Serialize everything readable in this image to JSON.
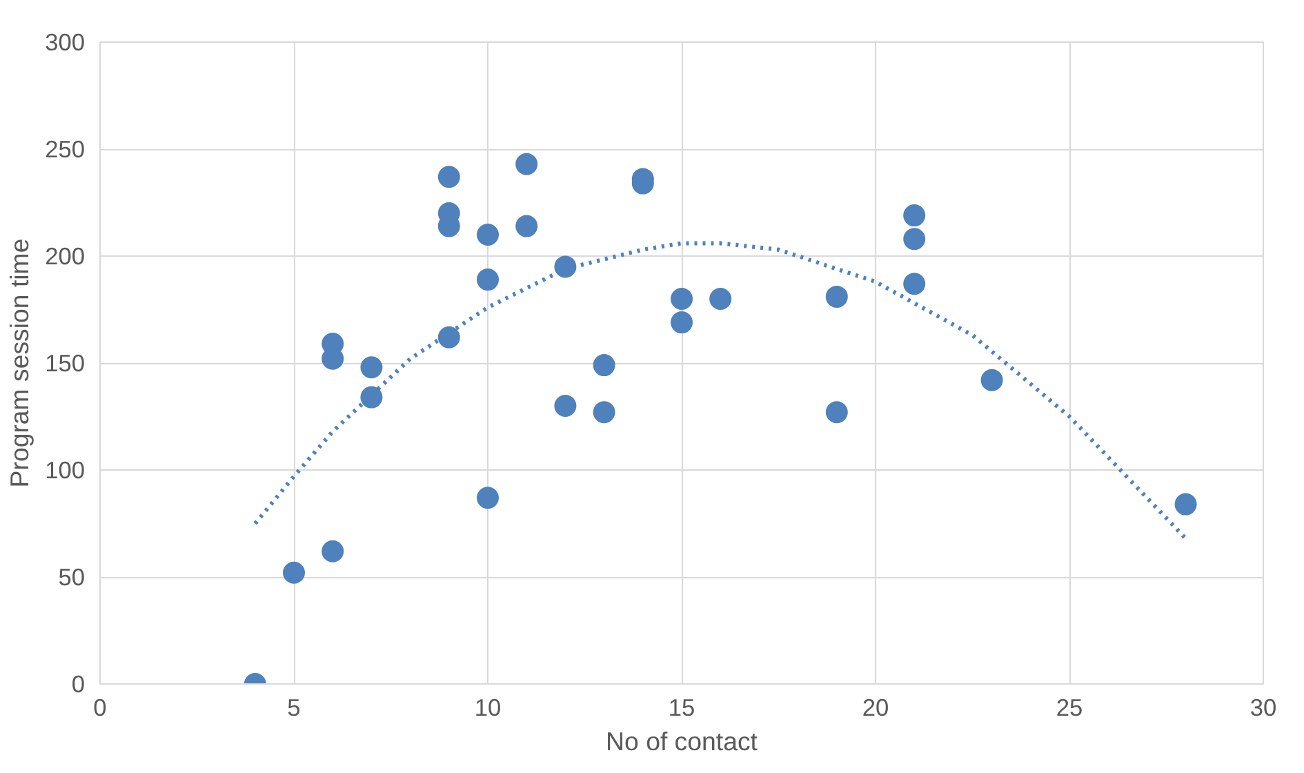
{
  "chart_data": {
    "type": "scatter",
    "xlabel": "No of contact",
    "ylabel": "Program session time",
    "xlim": [
      0,
      30
    ],
    "xticks": [
      0,
      5,
      10,
      15,
      20,
      25,
      30
    ],
    "ylim": [
      0,
      300
    ],
    "yticks": [
      0,
      50,
      100,
      150,
      200,
      250,
      300
    ],
    "grid": true,
    "marker": "circle",
    "series": [
      {
        "color": "#4f81bd",
        "x": [
          4,
          5,
          6,
          6,
          6,
          7,
          7,
          9,
          9,
          9,
          9,
          10,
          10,
          10,
          11,
          11,
          12,
          12,
          13,
          13,
          14,
          14,
          15,
          15,
          16,
          19,
          19,
          21,
          21,
          21,
          23,
          28
        ],
        "values": [
          0,
          52,
          62,
          152,
          159,
          134,
          148,
          162,
          214,
          220,
          237,
          87,
          189,
          210,
          214,
          243,
          130,
          195,
          127,
          149,
          234,
          236,
          169,
          180,
          180,
          127,
          181,
          187,
          208,
          219,
          142,
          84
        ]
      },
      {
        "type": "line",
        "line_style": "dotted",
        "marker": "none",
        "color": "#4f81bd",
        "x": [
          4,
          5,
          6,
          8,
          10,
          12,
          14,
          15,
          16,
          17.5,
          20,
          22.5,
          25,
          28
        ],
        "values": [
          75,
          97,
          118,
          152,
          176,
          194,
          203,
          206,
          206,
          203,
          188,
          163,
          125,
          68
        ]
      }
    ]
  }
}
